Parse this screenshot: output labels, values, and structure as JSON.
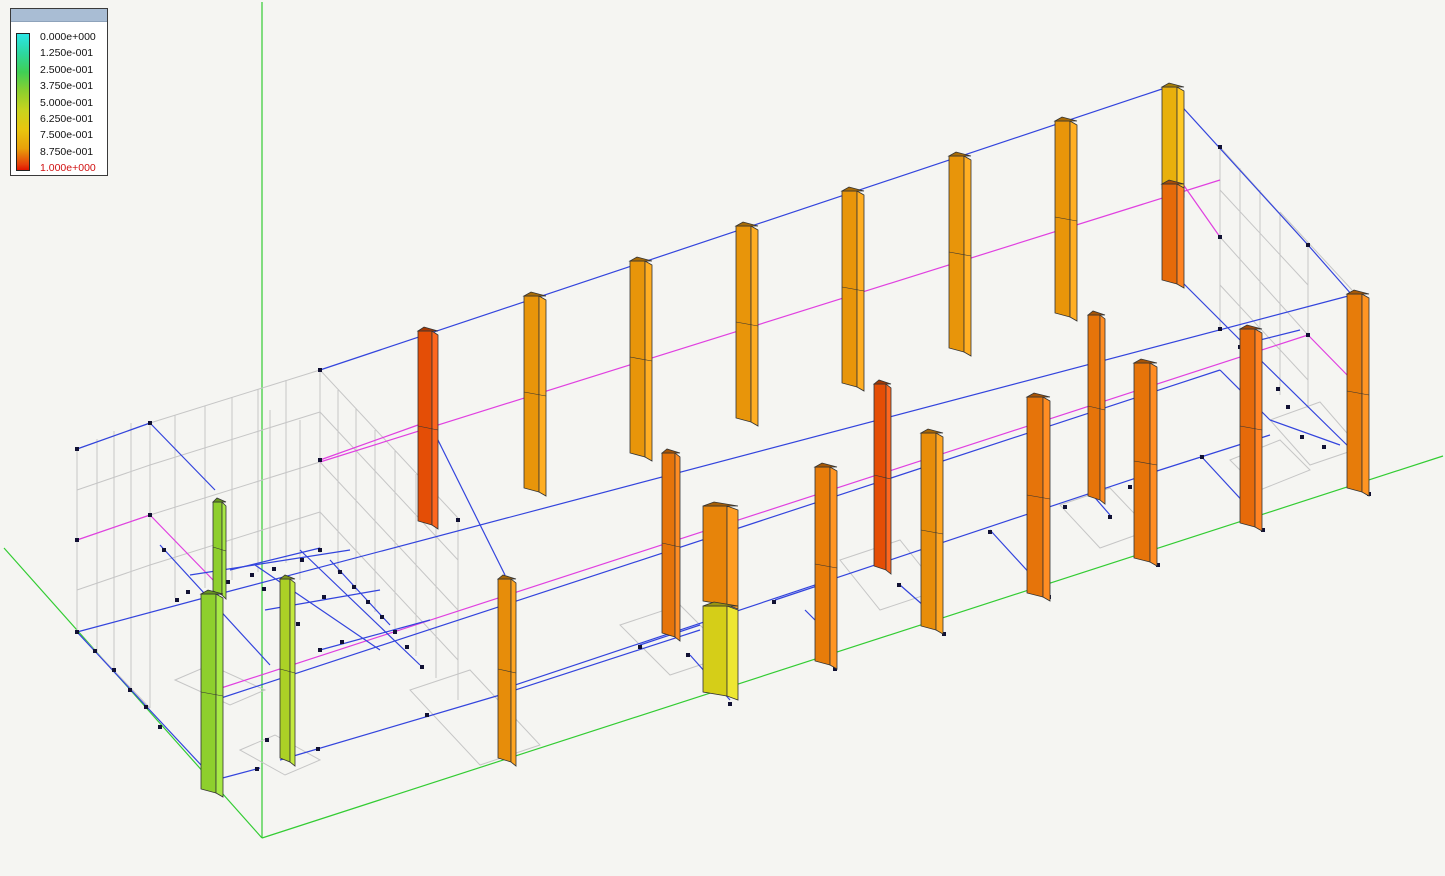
{
  "legend": {
    "values": [
      "0.000e+000",
      "1.250e-001",
      "2.500e-001",
      "3.750e-001",
      "5.000e-001",
      "6.250e-001",
      "7.500e-001",
      "8.750e-001",
      "1.000e+000"
    ]
  },
  "colors": {
    "beam_blue": "#3344dd",
    "beam_magenta": "#e040e0",
    "axis_green": "#33cc33",
    "grid_gray": "#c8c8c8",
    "node": "#111133"
  },
  "scene": {
    "columns": [
      {
        "id": "back-1",
        "ratio": 0.92
      },
      {
        "id": "back-2",
        "ratio": 0.78
      },
      {
        "id": "back-3",
        "ratio": 0.78
      },
      {
        "id": "back-4",
        "ratio": 0.78
      },
      {
        "id": "back-5",
        "ratio": 0.78
      },
      {
        "id": "back-6",
        "ratio": 0.78
      },
      {
        "id": "back-7",
        "ratio": 0.78
      },
      {
        "id": "back-8-upper",
        "ratio": 0.7
      },
      {
        "id": "back-8-lower",
        "ratio": 0.88
      },
      {
        "id": "front-1",
        "ratio": 0.38
      },
      {
        "id": "front-2",
        "ratio": 0.38
      },
      {
        "id": "front-3",
        "ratio": 0.44
      },
      {
        "id": "front-4",
        "ratio": 0.8
      },
      {
        "id": "front-5-upper",
        "ratio": 0.82
      },
      {
        "id": "front-5-lower",
        "ratio": 0.55
      },
      {
        "id": "front-6",
        "ratio": 0.86
      },
      {
        "id": "front-7",
        "ratio": 0.84
      },
      {
        "id": "front-8",
        "ratio": 0.92
      },
      {
        "id": "front-9",
        "ratio": 0.8
      },
      {
        "id": "front-10",
        "ratio": 0.86
      },
      {
        "id": "front-11",
        "ratio": 0.86
      },
      {
        "id": "front-12",
        "ratio": 0.86
      },
      {
        "id": "front-13",
        "ratio": 0.88
      }
    ]
  }
}
